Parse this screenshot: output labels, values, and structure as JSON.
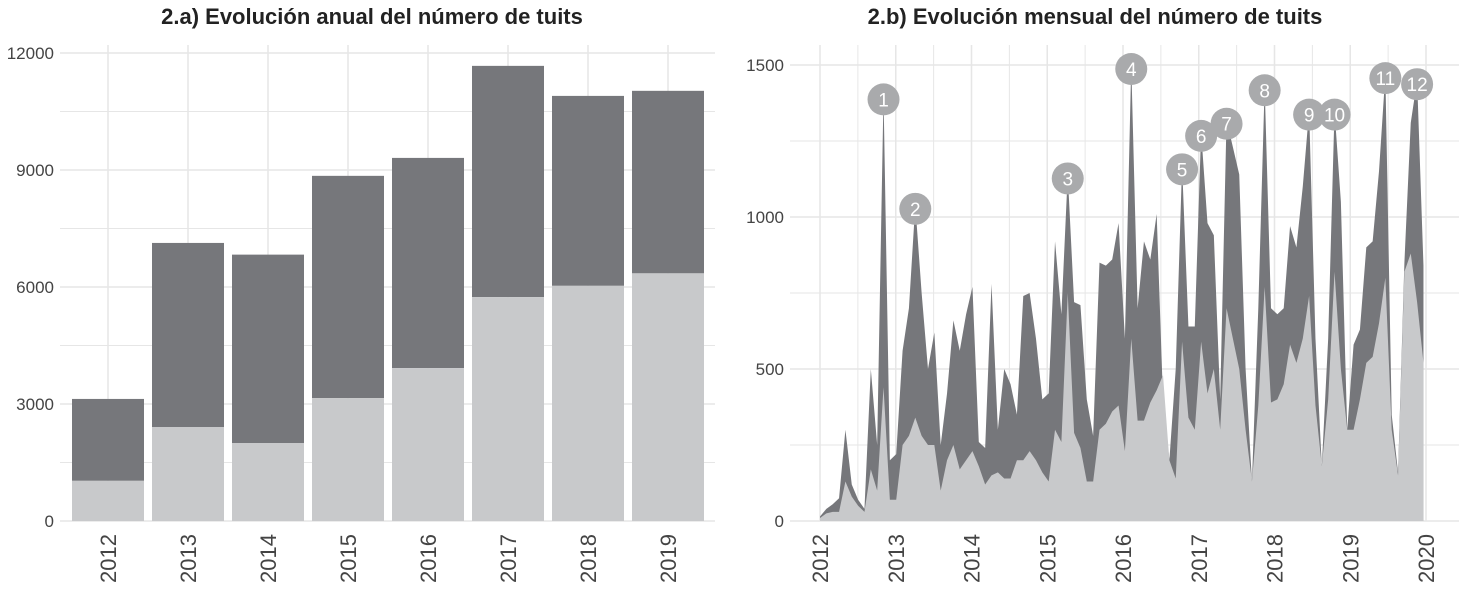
{
  "colors": {
    "dark": "#76777b",
    "light": "#c8c9cb",
    "annotation": "#a9aaac",
    "grid": "#e6e6e6"
  },
  "chart_data": [
    {
      "type": "bar",
      "stacked": true,
      "title": "2.a) Evolución anual del número de tuits",
      "categories": [
        "2012",
        "2013",
        "2014",
        "2015",
        "2016",
        "2017",
        "2018",
        "2019"
      ],
      "series": [
        {
          "values": [
            1030,
            2410,
            2000,
            3150,
            3920,
            5740,
            6030,
            6350
          ]
        },
        {
          "values": [
            2100,
            4720,
            4830,
            5700,
            5390,
            5930,
            4870,
            4680
          ]
        }
      ],
      "totals": [
        3130,
        7130,
        6830,
        8850,
        9310,
        11670,
        10900,
        11030
      ],
      "ylim": [
        0,
        12000
      ],
      "yticks": [
        "0",
        "3000",
        "6000",
        "9000",
        "12000"
      ],
      "grid": true
    },
    {
      "type": "area",
      "stacked": true,
      "title": "2.b) Evolución mensual del número de tuits",
      "x_start": "2012-01",
      "x_frequency": "monthly",
      "xticks": [
        "2012",
        "2013",
        "2014",
        "2015",
        "2016",
        "2017",
        "2018",
        "2019",
        "2020"
      ],
      "ylim": [
        0,
        1500
      ],
      "yticks": [
        "0",
        "500",
        "1000",
        "1500"
      ],
      "grid": true,
      "total": [
        15,
        40,
        55,
        75,
        300,
        120,
        70,
        40,
        500,
        250,
        1400,
        200,
        220,
        560,
        700,
        1040,
        750,
        500,
        620,
        250,
        420,
        660,
        560,
        680,
        770,
        260,
        240,
        780,
        300,
        500,
        450,
        350,
        740,
        750,
        600,
        400,
        420,
        920,
        680,
        1140,
        720,
        710,
        400,
        280,
        850,
        840,
        860,
        980,
        600,
        1500,
        700,
        920,
        860,
        1010,
        400,
        200,
        500,
        1170,
        640,
        640,
        1280,
        980,
        940,
        400,
        1320,
        1230,
        1140,
        500,
        130,
        700,
        1430,
        700,
        680,
        700,
        970,
        900,
        1100,
        1350,
        600,
        180,
        600,
        1350,
        1050,
        300,
        580,
        630,
        900,
        920,
        1150,
        1470,
        350,
        160,
        850,
        1310,
        1450,
        840
      ],
      "light": [
        10,
        25,
        30,
        30,
        130,
        80,
        50,
        30,
        170,
        100,
        440,
        70,
        70,
        250,
        280,
        340,
        280,
        250,
        250,
        100,
        200,
        250,
        170,
        200,
        230,
        180,
        120,
        150,
        160,
        140,
        140,
        200,
        200,
        230,
        200,
        160,
        130,
        300,
        260,
        750,
        290,
        240,
        130,
        130,
        300,
        320,
        360,
        380,
        230,
        600,
        330,
        330,
        390,
        430,
        480,
        200,
        140,
        590,
        340,
        300,
        590,
        420,
        500,
        300,
        700,
        600,
        500,
        300,
        130,
        380,
        770,
        390,
        400,
        450,
        580,
        520,
        600,
        740,
        380,
        180,
        400,
        820,
        500,
        300,
        300,
        400,
        520,
        540,
        650,
        800,
        300,
        150,
        820,
        880,
        720,
        520
      ],
      "annotations": [
        {
          "label": "1",
          "month": "2012-11"
        },
        {
          "label": "2",
          "month": "2013-04"
        },
        {
          "label": "3",
          "month": "2015-04"
        },
        {
          "label": "4",
          "month": "2016-02"
        },
        {
          "label": "5",
          "month": "2016-10"
        },
        {
          "label": "6",
          "month": "2017-01"
        },
        {
          "label": "7",
          "month": "2017-05"
        },
        {
          "label": "8",
          "month": "2017-11"
        },
        {
          "label": "9",
          "month": "2018-06"
        },
        {
          "label": "10",
          "month": "2018-10"
        },
        {
          "label": "11",
          "month": "2019-06"
        },
        {
          "label": "12",
          "month": "2019-11"
        }
      ]
    }
  ]
}
